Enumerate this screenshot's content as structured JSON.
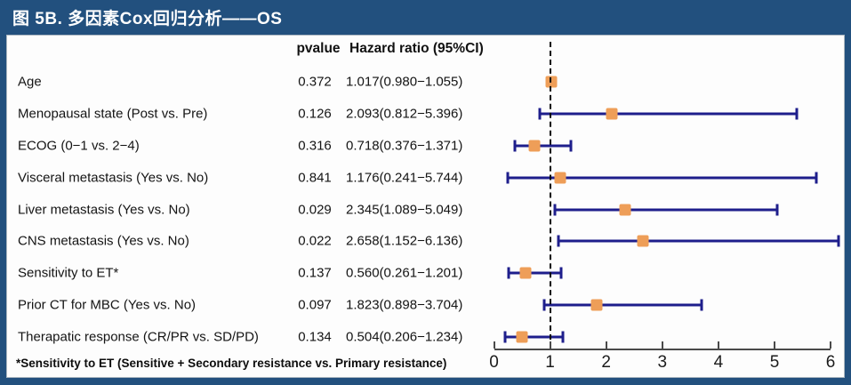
{
  "header": {
    "title": "图 5B. 多因素Cox回归分析——OS"
  },
  "columns": {
    "pvalue": "pvalue",
    "hazard_ratio": "Hazard ratio (95%CI)"
  },
  "footnote": "*Sensitivity to ET (Sensitive + Secondary resistance vs. Primary resistance)",
  "colors": {
    "header_bg": "#22507e",
    "frame": "#22507e",
    "panel_bg": "#fdfdfd",
    "ci_line": "#1e1e8c",
    "marker": "#ee9e58",
    "axis": "#4a4a4a",
    "reference_line": "#0a0a0a"
  },
  "chart_data": {
    "type": "forest",
    "title": "图 5B. 多因素Cox回归分析——OS",
    "xlabel": "",
    "legend": null,
    "grid": false,
    "x_axis": {
      "min": 0,
      "max": 6,
      "ticks": [
        0,
        1,
        2,
        3,
        4,
        5,
        6
      ],
      "reference_line": 1
    },
    "rows": [
      {
        "label": "Age",
        "pvalue": "0.372",
        "hr_text": "1.017(0.980−1.055)",
        "hr": 1.017,
        "ci_low": 0.98,
        "ci_high": 1.055
      },
      {
        "label": "Menopausal state (Post vs. Pre)",
        "pvalue": "0.126",
        "hr_text": "2.093(0.812−5.396)",
        "hr": 2.093,
        "ci_low": 0.812,
        "ci_high": 5.396
      },
      {
        "label": "ECOG (0−1 vs. 2−4)",
        "pvalue": "0.316",
        "hr_text": "0.718(0.376−1.371)",
        "hr": 0.718,
        "ci_low": 0.376,
        "ci_high": 1.371
      },
      {
        "label": "Visceral metastasis (Yes vs. No)",
        "pvalue": "0.841",
        "hr_text": "1.176(0.241−5.744)",
        "hr": 1.176,
        "ci_low": 0.241,
        "ci_high": 5.744
      },
      {
        "label": "Liver metastasis (Yes vs. No)",
        "pvalue": "0.029",
        "hr_text": "2.345(1.089−5.049)",
        "hr": 2.345,
        "ci_low": 1.089,
        "ci_high": 5.049
      },
      {
        "label": "CNS metastasis (Yes vs. No)",
        "pvalue": "0.022",
        "hr_text": "2.658(1.152−6.136)",
        "hr": 2.658,
        "ci_low": 1.152,
        "ci_high": 6.136
      },
      {
        "label": "Sensitivity to ET*",
        "pvalue": "0.137",
        "hr_text": "0.560(0.261−1.201)",
        "hr": 0.56,
        "ci_low": 0.261,
        "ci_high": 1.201
      },
      {
        "label": "Prior CT for MBC (Yes vs. No)",
        "pvalue": "0.097",
        "hr_text": "1.823(0.898−3.704)",
        "hr": 1.823,
        "ci_low": 0.898,
        "ci_high": 3.704
      },
      {
        "label": "Therapatic response (CR/PR vs. SD/PD)",
        "pvalue": "0.134",
        "hr_text": "0.504(0.206−1.234)",
        "hr": 0.504,
        "ci_low": 0.206,
        "ci_high": 1.234
      }
    ]
  }
}
